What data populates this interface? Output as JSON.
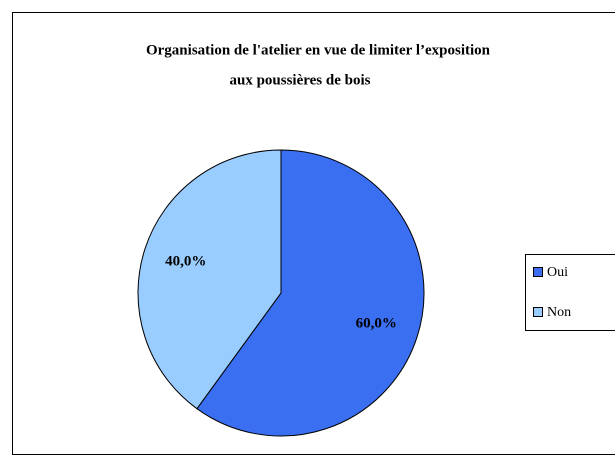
{
  "chart_data": {
    "type": "pie",
    "title": [
      "Organisation de l'atelier en vue de limiter l’exposition",
      "aux poussières de bois"
    ],
    "categories": [
      "Oui",
      "Non"
    ],
    "values": [
      60,
      40
    ],
    "value_labels": [
      "60,0%",
      "40,0%"
    ],
    "colors": [
      "#3a6ff2",
      "#99ccff"
    ],
    "legend": "right"
  }
}
